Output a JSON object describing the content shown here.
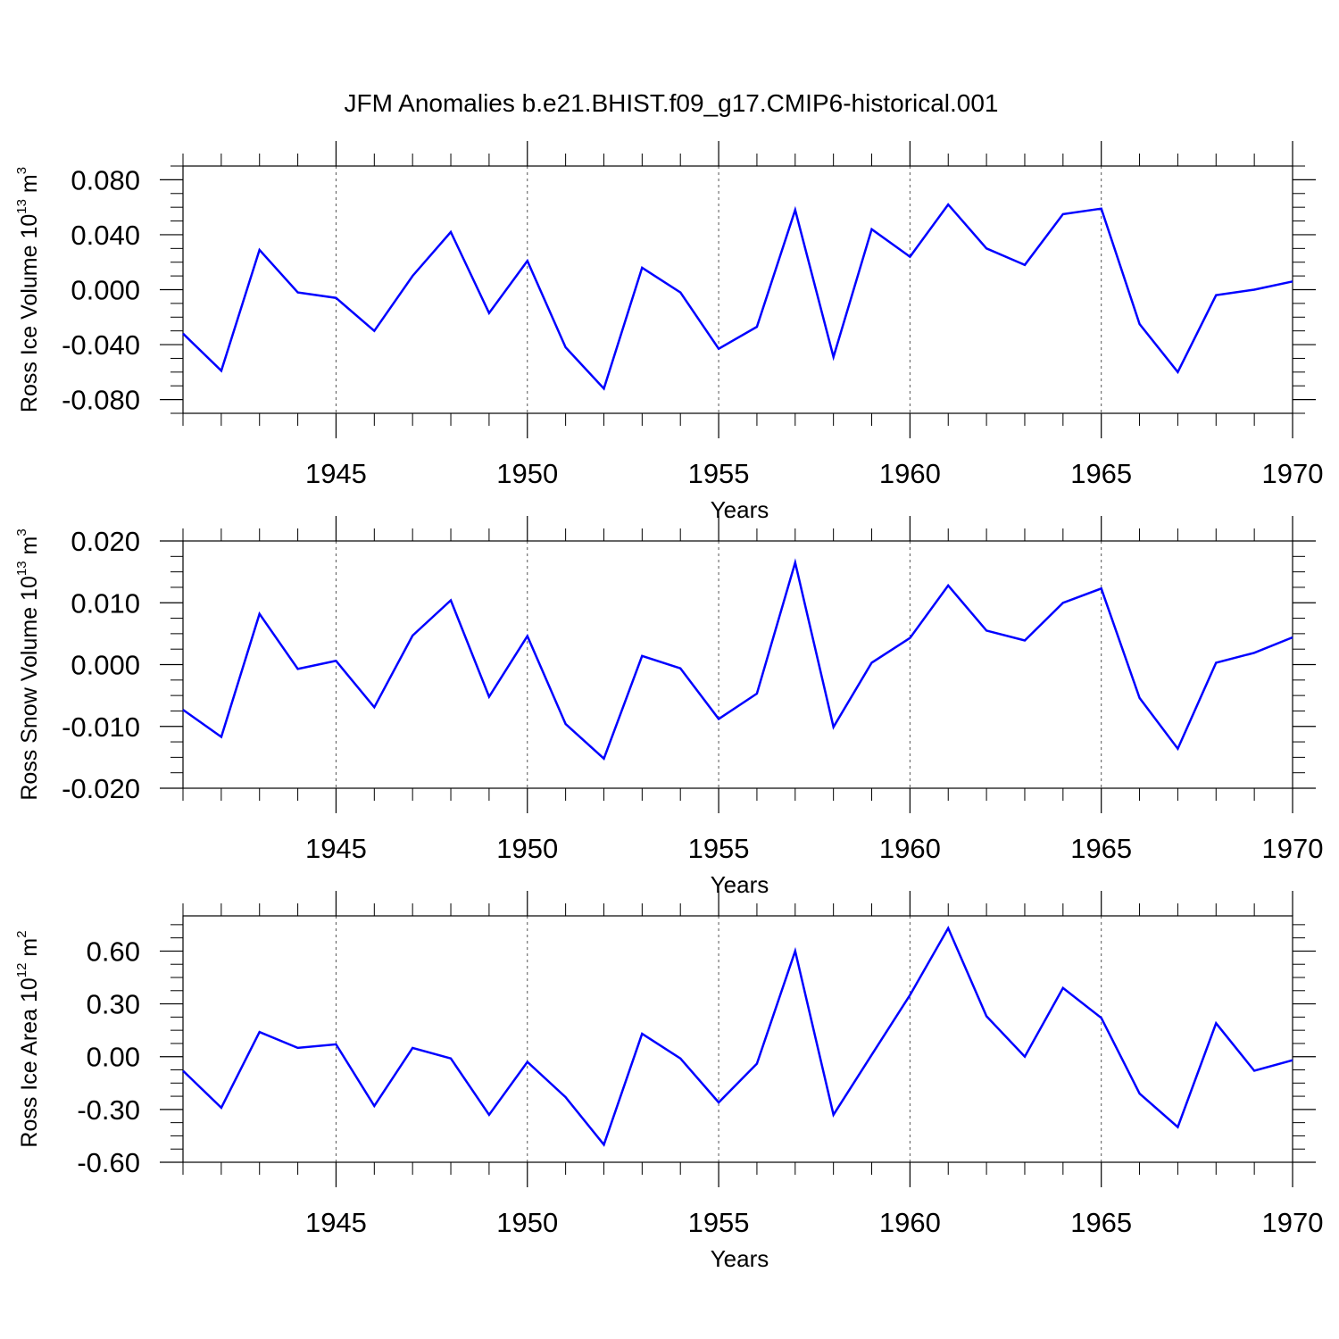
{
  "title": "JFM Anomalies b.e21.BHIST.f09_g17.CMIP6-historical.001",
  "colors": {
    "series": "#0000ff",
    "grid": "#555555"
  },
  "chart_data": [
    {
      "type": "line",
      "title": "",
      "xlabel": "Years",
      "ylabel": {
        "prefix": "Ross Ice Volume 10",
        "exp": "13",
        "mid": " m",
        "unit_exp": "3"
      },
      "grid": "vertical dashed at major x ticks",
      "xlim": [
        1941,
        1970
      ],
      "ylim": [
        -0.09,
        0.09
      ],
      "x_ticks": [
        1945,
        1950,
        1955,
        1960,
        1965,
        1970
      ],
      "y_ticks": [
        -0.08,
        -0.04,
        0.0,
        0.04,
        0.08
      ],
      "y_tick_labels": [
        "-0.080",
        "-0.040",
        "0.000",
        "0.040",
        "0.080"
      ],
      "x": [
        1941,
        1942,
        1943,
        1944,
        1945,
        1946,
        1947,
        1948,
        1949,
        1950,
        1951,
        1952,
        1953,
        1954,
        1955,
        1956,
        1957,
        1958,
        1959,
        1960,
        1961,
        1962,
        1963,
        1964,
        1965,
        1966,
        1967,
        1968,
        1969,
        1970
      ],
      "values": [
        -0.032,
        -0.059,
        0.029,
        -0.002,
        -0.006,
        -0.03,
        0.01,
        0.042,
        -0.017,
        0.021,
        -0.042,
        -0.072,
        0.016,
        -0.002,
        -0.043,
        -0.027,
        0.058,
        -0.049,
        0.044,
        0.024,
        0.062,
        0.03,
        0.018,
        0.055,
        0.059,
        -0.025,
        -0.06,
        -0.004,
        0.0,
        0.006
      ]
    },
    {
      "type": "line",
      "title": "",
      "xlabel": "Years",
      "ylabel": {
        "prefix": "Ross Snow Volume 10",
        "exp": "13",
        "mid": " m",
        "unit_exp": "3"
      },
      "grid": "vertical dashed at major x ticks",
      "xlim": [
        1941,
        1970
      ],
      "ylim": [
        -0.02,
        0.02
      ],
      "x_ticks": [
        1945,
        1950,
        1955,
        1960,
        1965,
        1970
      ],
      "y_ticks": [
        -0.02,
        -0.01,
        0.0,
        0.01,
        0.02
      ],
      "y_tick_labels": [
        "-0.020",
        "-0.010",
        "0.000",
        "0.010",
        "0.020"
      ],
      "x": [
        1941,
        1942,
        1943,
        1944,
        1945,
        1946,
        1947,
        1948,
        1949,
        1950,
        1951,
        1952,
        1953,
        1954,
        1955,
        1956,
        1957,
        1958,
        1959,
        1960,
        1961,
        1962,
        1963,
        1964,
        1965,
        1966,
        1967,
        1968,
        1969,
        1970
      ],
      "values": [
        -0.0073,
        -0.0117,
        0.0082,
        -0.0007,
        0.0006,
        -0.0069,
        0.0047,
        0.0104,
        -0.0052,
        0.0046,
        -0.0096,
        -0.0152,
        0.0014,
        -0.0006,
        -0.0088,
        -0.0047,
        0.0165,
        -0.0101,
        0.0003,
        0.0043,
        0.0128,
        0.0055,
        0.0039,
        0.01,
        0.0123,
        -0.0054,
        -0.0136,
        0.0003,
        0.0019,
        0.0044
      ]
    },
    {
      "type": "line",
      "title": "",
      "xlabel": "Years",
      "ylabel": {
        "prefix": "Ross Ice Area 10",
        "exp": "12",
        "mid": " m",
        "unit_exp": "2"
      },
      "grid": "vertical dashed at major x ticks",
      "xlim": [
        1941,
        1970
      ],
      "ylim": [
        -0.6,
        0.8
      ],
      "x_ticks": [
        1945,
        1950,
        1955,
        1960,
        1965,
        1970
      ],
      "y_ticks": [
        -0.6,
        -0.3,
        0.0,
        0.3,
        0.6
      ],
      "y_tick_labels": [
        "-0.60",
        "-0.30",
        "0.00",
        "0.30",
        "0.60"
      ],
      "x": [
        1941,
        1942,
        1943,
        1944,
        1945,
        1946,
        1947,
        1948,
        1949,
        1950,
        1951,
        1952,
        1953,
        1954,
        1955,
        1956,
        1957,
        1958,
        1959,
        1960,
        1961,
        1962,
        1963,
        1964,
        1965,
        1966,
        1967,
        1968,
        1969,
        1970
      ],
      "values": [
        -0.08,
        -0.29,
        0.14,
        0.05,
        0.07,
        -0.28,
        0.05,
        -0.01,
        -0.33,
        -0.03,
        -0.23,
        -0.5,
        0.13,
        -0.01,
        -0.26,
        -0.04,
        0.6,
        -0.33,
        0.01,
        0.35,
        0.73,
        0.23,
        0.0,
        0.39,
        0.22,
        -0.21,
        -0.4,
        0.19,
        -0.08,
        -0.02
      ]
    }
  ]
}
